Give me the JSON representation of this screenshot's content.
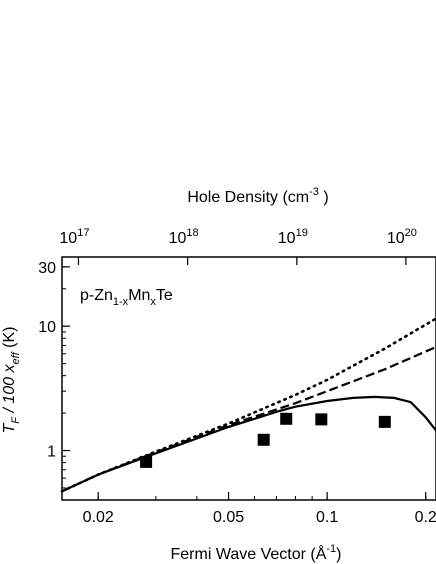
{
  "chart_data": {
    "type": "line",
    "xscale": "log",
    "yscale": "log",
    "xlim": [
      0.0155,
      0.215
    ],
    "ylim": [
      0.4,
      36
    ],
    "xlabel_pre": "Fermi Wave Vector (Å",
    "xlabel_sup": "-1",
    "xlabel_post": ")",
    "ylabel_main": "T",
    "ylabel_sub1": "F",
    "ylabel_mid": " / 100 x",
    "ylabel_sub2": "eff",
    "ylabel_post": "  (K)",
    "top_axis_label_pre": "Hole Density (cm",
    "top_axis_label_sup": "-3",
    "top_axis_label_post": " )",
    "annotation": {
      "prefix": "p-Zn",
      "sub1": "1-x",
      "mid": "Mn",
      "sub2": "x",
      "suffix": "Te"
    },
    "x_ticks": [
      {
        "value": 0.02,
        "label": "0.02"
      },
      {
        "value": 0.05,
        "label": "0.05"
      },
      {
        "value": 0.1,
        "label": "0.1"
      },
      {
        "value": 0.2,
        "label": "0.2"
      }
    ],
    "y_ticks": [
      {
        "value": 1,
        "label": "1"
      },
      {
        "value": 10,
        "label": "10"
      },
      {
        "value": 30,
        "label": "30"
      }
    ],
    "top_ticks": [
      {
        "value": 0.0174,
        "base": "10",
        "exp": "17"
      },
      {
        "value": 0.0375,
        "base": "10",
        "exp": "18"
      },
      {
        "value": 0.0808,
        "base": "10",
        "exp": "19"
      },
      {
        "value": 0.174,
        "base": "10",
        "exp": "20"
      }
    ],
    "series": [
      {
        "style": "solid",
        "points": [
          [
            0.0155,
            0.47
          ],
          [
            0.02,
            0.64
          ],
          [
            0.03,
            0.95
          ],
          [
            0.04,
            1.25
          ],
          [
            0.05,
            1.55
          ],
          [
            0.06,
            1.8
          ],
          [
            0.07,
            2.05
          ],
          [
            0.08,
            2.25
          ],
          [
            0.1,
            2.5
          ],
          [
            0.12,
            2.65
          ],
          [
            0.14,
            2.7
          ],
          [
            0.16,
            2.65
          ],
          [
            0.18,
            2.45
          ],
          [
            0.2,
            1.85
          ],
          [
            0.215,
            1.45
          ]
        ]
      },
      {
        "style": "dashed",
        "points": [
          [
            0.0155,
            0.47
          ],
          [
            0.02,
            0.64
          ],
          [
            0.03,
            0.97
          ],
          [
            0.05,
            1.6
          ],
          [
            0.08,
            2.4
          ],
          [
            0.1,
            3.0
          ],
          [
            0.15,
            4.5
          ],
          [
            0.215,
            6.8
          ]
        ]
      },
      {
        "style": "dotted",
        "points": [
          [
            0.0155,
            0.47
          ],
          [
            0.02,
            0.64
          ],
          [
            0.03,
            0.98
          ],
          [
            0.05,
            1.65
          ],
          [
            0.08,
            2.8
          ],
          [
            0.1,
            3.7
          ],
          [
            0.15,
            6.6
          ],
          [
            0.215,
            11.5
          ]
        ]
      }
    ],
    "markers": [
      {
        "x": 0.028,
        "y": 0.81
      },
      {
        "x": 0.064,
        "y": 1.22
      },
      {
        "x": 0.075,
        "y": 1.8
      },
      {
        "x": 0.096,
        "y": 1.78
      },
      {
        "x": 0.15,
        "y": 1.7
      }
    ]
  }
}
